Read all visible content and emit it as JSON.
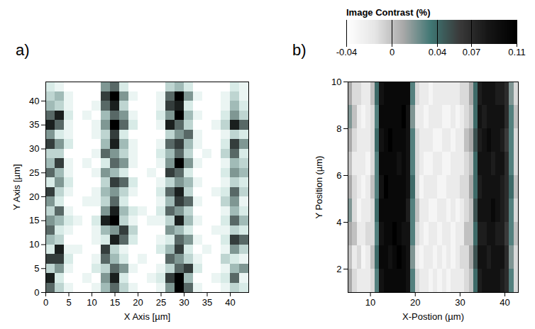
{
  "chart_data": [
    {
      "type": "heatmap",
      "title": "a)",
      "x_label": "X Axis [µm]",
      "y_label": "Y Axis [µm]",
      "xlim": [
        0,
        44
      ],
      "ylim": [
        0,
        44
      ],
      "xticks": [
        0,
        5,
        10,
        15,
        20,
        25,
        30,
        35,
        40
      ],
      "yticks": [
        0,
        5,
        10,
        15,
        20,
        25,
        30,
        35,
        40
      ],
      "cell_range": [
        0,
        9
      ],
      "cells": {
        "x": [
          0,
          2,
          4,
          6,
          8,
          10,
          12,
          14,
          16,
          18,
          20,
          22,
          24,
          26,
          28,
          30,
          32,
          34,
          36,
          38,
          40,
          42,
          44
        ],
        "y": [
          0,
          2,
          4,
          6,
          8,
          10,
          12,
          14,
          16,
          18,
          20,
          22,
          24,
          26,
          28,
          30,
          32,
          34,
          36,
          38,
          40,
          42,
          44
        ],
        "values": [
          [
            6,
            3,
            1,
            0,
            0,
            1,
            4,
            6,
            3,
            1,
            0,
            0,
            1,
            5,
            9,
            6,
            1,
            0,
            0,
            1,
            3,
            2
          ],
          [
            8,
            2,
            0,
            0,
            1,
            0,
            5,
            8,
            2,
            0,
            0,
            1,
            2,
            7,
            9,
            4,
            0,
            0,
            1,
            2,
            6,
            1
          ],
          [
            3,
            5,
            1,
            0,
            0,
            2,
            3,
            6,
            5,
            1,
            0,
            0,
            1,
            3,
            6,
            7,
            2,
            0,
            0,
            1,
            4,
            5
          ],
          [
            7,
            7,
            2,
            0,
            0,
            1,
            6,
            4,
            2,
            0,
            1,
            0,
            0,
            6,
            5,
            3,
            1,
            0,
            0,
            3,
            2,
            1
          ],
          [
            2,
            8,
            1,
            1,
            0,
            0,
            7,
            3,
            1,
            0,
            0,
            0,
            2,
            4,
            7,
            2,
            0,
            1,
            0,
            1,
            5,
            3
          ],
          [
            4,
            3,
            0,
            0,
            0,
            1,
            2,
            8,
            6,
            2,
            0,
            0,
            1,
            2,
            6,
            5,
            1,
            0,
            0,
            2,
            7,
            6
          ],
          [
            6,
            2,
            1,
            0,
            0,
            1,
            4,
            5,
            7,
            3,
            0,
            0,
            0,
            5,
            4,
            2,
            0,
            0,
            1,
            1,
            3,
            2
          ],
          [
            5,
            4,
            2,
            1,
            0,
            2,
            8,
            9,
            3,
            1,
            0,
            1,
            1,
            3,
            8,
            4,
            1,
            0,
            0,
            2,
            6,
            4
          ],
          [
            3,
            6,
            1,
            0,
            0,
            0,
            5,
            8,
            4,
            2,
            1,
            0,
            2,
            6,
            5,
            3,
            0,
            0,
            0,
            1,
            4,
            2
          ],
          [
            5,
            2,
            0,
            0,
            1,
            1,
            3,
            6,
            2,
            0,
            0,
            0,
            1,
            4,
            7,
            6,
            1,
            0,
            0,
            3,
            5,
            1
          ],
          [
            7,
            3,
            1,
            0,
            0,
            1,
            4,
            5,
            3,
            1,
            0,
            0,
            2,
            6,
            8,
            3,
            0,
            0,
            1,
            2,
            6,
            3
          ],
          [
            2,
            5,
            2,
            0,
            0,
            0,
            3,
            7,
            6,
            2,
            0,
            0,
            1,
            3,
            5,
            4,
            1,
            0,
            0,
            1,
            3,
            2
          ],
          [
            6,
            4,
            1,
            0,
            0,
            1,
            5,
            4,
            2,
            0,
            0,
            1,
            0,
            7,
            6,
            2,
            0,
            0,
            0,
            2,
            5,
            4
          ],
          [
            4,
            7,
            1,
            0,
            1,
            0,
            2,
            6,
            5,
            1,
            0,
            0,
            1,
            5,
            9,
            5,
            1,
            0,
            0,
            1,
            4,
            3
          ],
          [
            3,
            3,
            0,
            0,
            0,
            1,
            6,
            5,
            3,
            1,
            0,
            0,
            2,
            4,
            6,
            3,
            0,
            1,
            0,
            3,
            6,
            2
          ],
          [
            7,
            5,
            2,
            0,
            0,
            0,
            4,
            8,
            4,
            1,
            0,
            0,
            1,
            6,
            7,
            4,
            1,
            0,
            0,
            2,
            7,
            5
          ],
          [
            5,
            2,
            1,
            0,
            0,
            1,
            3,
            7,
            2,
            0,
            0,
            0,
            0,
            3,
            5,
            6,
            1,
            0,
            0,
            1,
            3,
            2
          ],
          [
            8,
            6,
            1,
            0,
            0,
            1,
            5,
            9,
            6,
            2,
            0,
            0,
            1,
            8,
            6,
            3,
            0,
            0,
            1,
            3,
            8,
            6
          ],
          [
            6,
            8,
            2,
            0,
            1,
            0,
            4,
            6,
            5,
            1,
            0,
            0,
            2,
            5,
            9,
            4,
            1,
            0,
            0,
            2,
            5,
            3
          ],
          [
            4,
            3,
            1,
            0,
            0,
            1,
            6,
            8,
            3,
            0,
            0,
            0,
            1,
            7,
            8,
            2,
            0,
            0,
            0,
            1,
            4,
            2
          ],
          [
            3,
            4,
            1,
            0,
            0,
            0,
            7,
            9,
            5,
            1,
            0,
            0,
            1,
            6,
            9,
            5,
            1,
            0,
            0,
            1,
            3,
            1
          ],
          [
            2,
            1,
            0,
            0,
            0,
            0,
            5,
            6,
            2,
            0,
            0,
            0,
            0,
            3,
            4,
            2,
            0,
            0,
            0,
            0,
            2,
            1
          ]
        ]
      }
    },
    {
      "type": "heatmap",
      "title": "b)",
      "x_label": "X-Postion (µm)",
      "y_label": "Y Position (µm)",
      "xlim": [
        5,
        43
      ],
      "ylim": [
        1,
        10
      ],
      "xticks": [
        10,
        20,
        30,
        40
      ],
      "yticks": [
        2,
        4,
        6,
        8,
        10
      ],
      "colorbar": {
        "label": "Image Contrast (%)",
        "range": [
          -0.04,
          0.11
        ],
        "ticks": [
          -0.04,
          0,
          0.04,
          0.07,
          0.11
        ]
      },
      "cells": {
        "x": [
          5,
          6,
          7,
          8,
          9,
          10,
          11,
          12,
          13,
          14,
          15,
          16,
          17,
          18,
          19,
          20,
          21,
          22,
          23,
          24,
          25,
          26,
          27,
          28,
          29,
          30,
          31,
          32,
          33,
          34,
          35,
          36,
          37,
          38,
          39,
          40,
          41,
          42,
          43
        ],
        "y": [
          1,
          2,
          3,
          4,
          5,
          6,
          7,
          8,
          9,
          10
        ],
        "values": [
          [
            0.01,
            -0.01,
            -0.02,
            -0.02,
            -0.02,
            -0.01,
            0.03,
            0.09,
            0.1,
            0.1,
            0.1,
            0.1,
            0.1,
            0.09,
            0.03,
            -0.01,
            -0.02,
            -0.02,
            -0.03,
            -0.02,
            -0.03,
            -0.02,
            -0.03,
            -0.02,
            -0.02,
            -0.02,
            -0.01,
            0.0,
            0.04,
            0.08,
            0.09,
            0.09,
            0.09,
            0.09,
            0.08,
            0.07,
            0.03,
            -0.01
          ],
          [
            0.0,
            -0.02,
            -0.01,
            -0.03,
            -0.02,
            0.0,
            0.04,
            0.1,
            0.1,
            0.09,
            0.1,
            0.11,
            0.1,
            0.09,
            0.02,
            -0.02,
            -0.03,
            -0.02,
            -0.02,
            -0.03,
            -0.02,
            -0.03,
            -0.02,
            -0.03,
            -0.02,
            -0.01,
            -0.01,
            0.01,
            0.05,
            0.09,
            0.09,
            0.08,
            0.09,
            0.09,
            0.09,
            0.07,
            0.02,
            -0.01
          ],
          [
            0.01,
            0.0,
            -0.02,
            -0.02,
            -0.01,
            -0.01,
            0.03,
            0.09,
            0.1,
            0.1,
            0.11,
            0.1,
            0.09,
            0.09,
            0.03,
            -0.01,
            -0.02,
            -0.03,
            -0.02,
            -0.02,
            -0.03,
            -0.02,
            -0.02,
            -0.03,
            -0.02,
            -0.02,
            0.0,
            0.0,
            0.04,
            0.08,
            0.08,
            0.09,
            0.09,
            0.08,
            0.08,
            0.06,
            0.03,
            0.0
          ],
          [
            0.02,
            -0.01,
            -0.03,
            -0.02,
            -0.02,
            -0.01,
            0.04,
            0.1,
            0.1,
            0.1,
            0.1,
            0.1,
            0.1,
            0.08,
            0.03,
            0.0,
            -0.02,
            -0.02,
            -0.03,
            -0.03,
            -0.02,
            -0.02,
            -0.03,
            -0.02,
            -0.03,
            -0.02,
            -0.01,
            0.0,
            0.05,
            0.09,
            0.09,
            0.09,
            0.1,
            0.09,
            0.08,
            0.07,
            0.03,
            -0.01
          ],
          [
            0.01,
            -0.01,
            -0.02,
            -0.03,
            -0.02,
            0.0,
            0.03,
            0.09,
            0.11,
            0.1,
            0.1,
            0.1,
            0.1,
            0.09,
            0.04,
            -0.01,
            -0.03,
            -0.02,
            -0.02,
            -0.02,
            -0.03,
            -0.03,
            -0.02,
            -0.02,
            -0.02,
            -0.01,
            -0.01,
            0.01,
            0.04,
            0.08,
            0.09,
            0.09,
            0.09,
            0.09,
            0.08,
            0.07,
            0.04,
            0.0
          ],
          [
            0.0,
            -0.02,
            -0.02,
            -0.02,
            -0.03,
            -0.01,
            0.03,
            0.1,
            0.1,
            0.1,
            0.1,
            0.09,
            0.1,
            0.09,
            0.03,
            -0.01,
            -0.02,
            -0.03,
            -0.03,
            -0.02,
            -0.02,
            -0.03,
            -0.03,
            -0.02,
            -0.02,
            -0.02,
            -0.01,
            0.0,
            0.04,
            0.09,
            0.09,
            0.09,
            0.08,
            0.09,
            0.09,
            0.07,
            0.03,
            -0.01
          ],
          [
            0.01,
            -0.01,
            -0.02,
            -0.02,
            -0.02,
            -0.01,
            0.04,
            0.09,
            0.1,
            0.11,
            0.1,
            0.1,
            0.1,
            0.09,
            0.03,
            -0.01,
            -0.02,
            -0.02,
            -0.02,
            -0.03,
            -0.03,
            -0.02,
            -0.02,
            -0.03,
            -0.02,
            -0.02,
            0.0,
            0.01,
            0.05,
            0.08,
            0.09,
            0.1,
            0.09,
            0.09,
            0.08,
            0.06,
            0.03,
            -0.01
          ],
          [
            0.02,
            0.0,
            -0.02,
            -0.03,
            -0.02,
            -0.01,
            0.03,
            0.1,
            0.1,
            0.1,
            0.1,
            0.1,
            0.11,
            0.09,
            0.02,
            -0.02,
            -0.02,
            -0.03,
            -0.02,
            -0.02,
            -0.02,
            -0.03,
            -0.03,
            -0.02,
            -0.03,
            -0.02,
            -0.01,
            0.0,
            0.04,
            0.09,
            0.08,
            0.09,
            0.09,
            0.09,
            0.09,
            0.07,
            0.03,
            0.0
          ],
          [
            0.01,
            -0.01,
            -0.01,
            -0.02,
            -0.02,
            0.0,
            0.04,
            0.09,
            0.1,
            0.1,
            0.1,
            0.1,
            0.1,
            0.1,
            0.03,
            -0.01,
            -0.02,
            -0.02,
            -0.03,
            -0.02,
            -0.02,
            -0.02,
            -0.02,
            -0.02,
            -0.02,
            -0.01,
            -0.01,
            0.01,
            0.04,
            0.08,
            0.09,
            0.09,
            0.09,
            0.08,
            0.08,
            0.07,
            0.02,
            -0.01
          ]
        ]
      }
    }
  ]
}
